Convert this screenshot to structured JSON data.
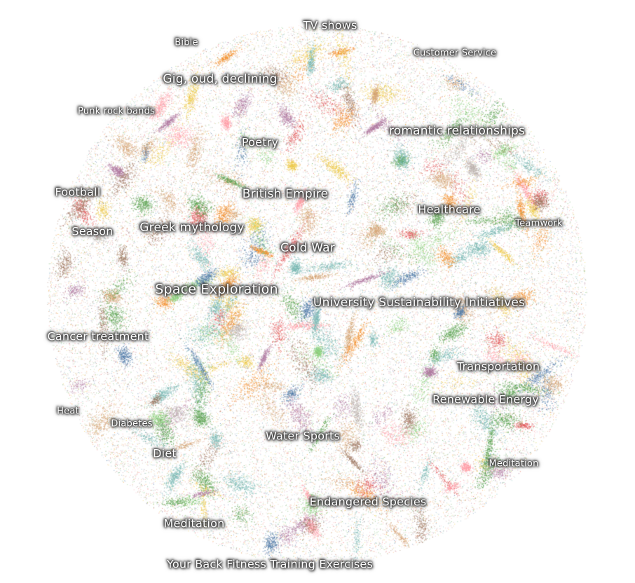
{
  "chart_data": {
    "type": "scatter",
    "title": "",
    "xlabel": "",
    "ylabel": "",
    "grid": false,
    "legend": "none",
    "axes_visible": false,
    "palette": [
      "#4e79a7",
      "#f28e2b",
      "#e15759",
      "#76b7b2",
      "#59a14f",
      "#edc948",
      "#b07aa1",
      "#ff9da7",
      "#9c755f",
      "#bab0ac",
      "#d4a373",
      "#8cd17d"
    ],
    "topics": [
      {
        "label": "TV shows"
      },
      {
        "label": "Bible"
      },
      {
        "label": "Customer Service"
      },
      {
        "label": "Gig, oud, declining"
      },
      {
        "label": "Punk rock bands"
      },
      {
        "label": "romantic relationships"
      },
      {
        "label": "Poetry"
      },
      {
        "label": "Football"
      },
      {
        "label": "British Empire"
      },
      {
        "label": "Healthcare"
      },
      {
        "label": "Teamwork"
      },
      {
        "label": "Season"
      },
      {
        "label": "Greek mythology"
      },
      {
        "label": "Cold War"
      },
      {
        "label": "Space Exploration"
      },
      {
        "label": "University Sustainability Initiatives"
      },
      {
        "label": "Cancer treatment"
      },
      {
        "label": "Transportation"
      },
      {
        "label": "Renewable Energy"
      },
      {
        "label": "Heat"
      },
      {
        "label": "Diabetes"
      },
      {
        "label": "Water Sports"
      },
      {
        "label": "Diet"
      },
      {
        "label": "Meditation"
      },
      {
        "label": "Endangered Species"
      },
      {
        "label": "Meditation"
      },
      {
        "label": "Your Back Fitness Training Exercises"
      }
    ]
  }
}
